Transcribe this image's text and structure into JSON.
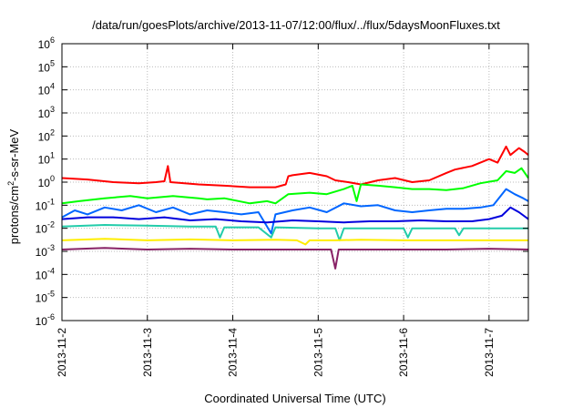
{
  "chart_data": {
    "type": "line",
    "title": "/data/run/goesPlots/archive/2013-11-07/12:00/flux/../flux/5daysMoonFluxes.txt",
    "xlabel": "Coordinated Universal Time (UTC)",
    "ylabel": {
      "prefix": "protons/cm",
      "superscript": "2",
      "suffix": "-s-sr-MeV"
    },
    "x_ticks": [
      "2013-11-2",
      "2013-11-3",
      "2013-11-4",
      "2013-11-5",
      "2013-11-6",
      "2013-11-7"
    ],
    "xlim_days": [
      0,
      5.46
    ],
    "y_scale": "log",
    "ylim": [
      1e-06,
      1000000.0
    ],
    "y_ticks": [
      {
        "base": "10",
        "exp": "-6"
      },
      {
        "base": "10",
        "exp": "-5"
      },
      {
        "base": "10",
        "exp": "-4"
      },
      {
        "base": "10",
        "exp": "-3"
      },
      {
        "base": "10",
        "exp": "-2"
      },
      {
        "base": "10",
        "exp": "-1"
      },
      {
        "base": "10",
        "exp": "0"
      },
      {
        "base": "10",
        "exp": "1"
      },
      {
        "base": "10",
        "exp": "2"
      },
      {
        "base": "10",
        "exp": "3"
      },
      {
        "base": "10",
        "exp": "4"
      },
      {
        "base": "10",
        "exp": "5"
      },
      {
        "base": "10",
        "exp": "6"
      }
    ],
    "grid": true,
    "series": [
      {
        "color": "#ff0000",
        "points": [
          [
            0.0,
            1.5
          ],
          [
            0.3,
            1.3
          ],
          [
            0.6,
            1.0
          ],
          [
            0.9,
            0.9
          ],
          [
            1.1,
            1.0
          ],
          [
            1.2,
            1.1
          ],
          [
            1.24,
            5.0
          ],
          [
            1.27,
            1.0
          ],
          [
            1.6,
            0.8
          ],
          [
            1.9,
            0.7
          ],
          [
            2.2,
            0.6
          ],
          [
            2.5,
            0.6
          ],
          [
            2.62,
            0.8
          ],
          [
            2.65,
            1.8
          ],
          [
            2.7,
            2.0
          ],
          [
            2.9,
            2.5
          ],
          [
            3.1,
            1.8
          ],
          [
            3.2,
            1.2
          ],
          [
            3.35,
            1.0
          ],
          [
            3.5,
            0.8
          ],
          [
            3.7,
            1.2
          ],
          [
            3.9,
            1.5
          ],
          [
            4.1,
            1.0
          ],
          [
            4.3,
            1.2
          ],
          [
            4.5,
            2.5
          ],
          [
            4.6,
            3.5
          ],
          [
            4.8,
            5.0
          ],
          [
            5.0,
            10.0
          ],
          [
            5.1,
            7.0
          ],
          [
            5.2,
            35.0
          ],
          [
            5.25,
            15.0
          ],
          [
            5.35,
            30.0
          ],
          [
            5.42,
            20.0
          ],
          [
            5.46,
            15.0
          ]
        ]
      },
      {
        "color": "#00ff00",
        "points": [
          [
            0.0,
            0.12
          ],
          [
            0.2,
            0.15
          ],
          [
            0.5,
            0.2
          ],
          [
            0.8,
            0.25
          ],
          [
            1.0,
            0.2
          ],
          [
            1.3,
            0.25
          ],
          [
            1.6,
            0.2
          ],
          [
            1.7,
            0.18
          ],
          [
            1.9,
            0.2
          ],
          [
            2.2,
            0.12
          ],
          [
            2.4,
            0.15
          ],
          [
            2.5,
            0.12
          ],
          [
            2.65,
            0.3
          ],
          [
            2.9,
            0.35
          ],
          [
            3.1,
            0.3
          ],
          [
            3.3,
            0.5
          ],
          [
            3.4,
            0.7
          ],
          [
            3.45,
            0.15
          ],
          [
            3.5,
            0.8
          ],
          [
            3.7,
            0.7
          ],
          [
            3.9,
            0.6
          ],
          [
            4.1,
            0.5
          ],
          [
            4.3,
            0.5
          ],
          [
            4.5,
            0.45
          ],
          [
            4.7,
            0.55
          ],
          [
            4.9,
            0.9
          ],
          [
            5.1,
            1.2
          ],
          [
            5.2,
            3.0
          ],
          [
            5.3,
            2.5
          ],
          [
            5.38,
            4.0
          ],
          [
            5.46,
            1.5
          ]
        ]
      },
      {
        "color": "#0066ff",
        "points": [
          [
            0.0,
            0.03
          ],
          [
            0.15,
            0.06
          ],
          [
            0.3,
            0.04
          ],
          [
            0.5,
            0.08
          ],
          [
            0.7,
            0.06
          ],
          [
            0.9,
            0.1
          ],
          [
            1.1,
            0.05
          ],
          [
            1.3,
            0.08
          ],
          [
            1.5,
            0.04
          ],
          [
            1.7,
            0.06
          ],
          [
            1.9,
            0.05
          ],
          [
            2.1,
            0.04
          ],
          [
            2.3,
            0.05
          ],
          [
            2.45,
            0.006
          ],
          [
            2.5,
            0.04
          ],
          [
            2.7,
            0.06
          ],
          [
            2.9,
            0.08
          ],
          [
            3.1,
            0.05
          ],
          [
            3.3,
            0.12
          ],
          [
            3.5,
            0.09
          ],
          [
            3.7,
            0.1
          ],
          [
            3.9,
            0.06
          ],
          [
            4.1,
            0.05
          ],
          [
            4.3,
            0.06
          ],
          [
            4.5,
            0.07
          ],
          [
            4.7,
            0.07
          ],
          [
            4.9,
            0.08
          ],
          [
            5.05,
            0.1
          ],
          [
            5.2,
            0.5
          ],
          [
            5.3,
            0.3
          ],
          [
            5.4,
            0.2
          ],
          [
            5.46,
            0.15
          ]
        ]
      },
      {
        "color": "#0000dd",
        "points": [
          [
            0.0,
            0.025
          ],
          [
            0.3,
            0.03
          ],
          [
            0.6,
            0.03
          ],
          [
            0.9,
            0.025
          ],
          [
            1.2,
            0.03
          ],
          [
            1.5,
            0.022
          ],
          [
            1.8,
            0.025
          ],
          [
            2.1,
            0.02
          ],
          [
            2.4,
            0.018
          ],
          [
            2.7,
            0.022
          ],
          [
            3.0,
            0.02
          ],
          [
            3.3,
            0.018
          ],
          [
            3.6,
            0.02
          ],
          [
            3.9,
            0.02
          ],
          [
            4.2,
            0.022
          ],
          [
            4.5,
            0.02
          ],
          [
            4.8,
            0.02
          ],
          [
            5.0,
            0.025
          ],
          [
            5.15,
            0.035
          ],
          [
            5.25,
            0.08
          ],
          [
            5.35,
            0.05
          ],
          [
            5.46,
            0.025
          ]
        ]
      },
      {
        "color": "#22ccaa",
        "points": [
          [
            0.0,
            0.012
          ],
          [
            0.5,
            0.014
          ],
          [
            1.0,
            0.013
          ],
          [
            1.5,
            0.012
          ],
          [
            1.8,
            0.012
          ],
          [
            1.85,
            0.004
          ],
          [
            1.9,
            0.011
          ],
          [
            2.3,
            0.011
          ],
          [
            2.45,
            0.004
          ],
          [
            2.5,
            0.011
          ],
          [
            3.0,
            0.01
          ],
          [
            3.2,
            0.01
          ],
          [
            3.25,
            0.003
          ],
          [
            3.3,
            0.01
          ],
          [
            3.8,
            0.01
          ],
          [
            4.0,
            0.01
          ],
          [
            4.05,
            0.004
          ],
          [
            4.1,
            0.01
          ],
          [
            4.6,
            0.01
          ],
          [
            4.65,
            0.005
          ],
          [
            4.7,
            0.01
          ],
          [
            5.0,
            0.01
          ],
          [
            5.46,
            0.01
          ]
        ]
      },
      {
        "color": "#ffee00",
        "points": [
          [
            0.0,
            0.003
          ],
          [
            0.5,
            0.0035
          ],
          [
            1.0,
            0.003
          ],
          [
            1.5,
            0.0033
          ],
          [
            2.0,
            0.003
          ],
          [
            2.5,
            0.0032
          ],
          [
            2.75,
            0.003
          ],
          [
            2.85,
            0.002
          ],
          [
            2.9,
            0.003
          ],
          [
            3.2,
            0.003
          ],
          [
            3.5,
            0.0032
          ],
          [
            4.0,
            0.003
          ],
          [
            4.5,
            0.003
          ],
          [
            5.0,
            0.003
          ],
          [
            5.46,
            0.003
          ]
        ]
      },
      {
        "color": "#882266",
        "points": [
          [
            0.0,
            0.0012
          ],
          [
            0.5,
            0.0014
          ],
          [
            1.0,
            0.0012
          ],
          [
            1.5,
            0.0013
          ],
          [
            2.0,
            0.0012
          ],
          [
            2.5,
            0.0012
          ],
          [
            3.0,
            0.0012
          ],
          [
            3.15,
            0.0012
          ],
          [
            3.2,
            0.00018
          ],
          [
            3.24,
            0.0012
          ],
          [
            3.5,
            0.0012
          ],
          [
            4.0,
            0.0012
          ],
          [
            4.5,
            0.0012
          ],
          [
            5.0,
            0.0013
          ],
          [
            5.46,
            0.0012
          ]
        ]
      }
    ]
  }
}
